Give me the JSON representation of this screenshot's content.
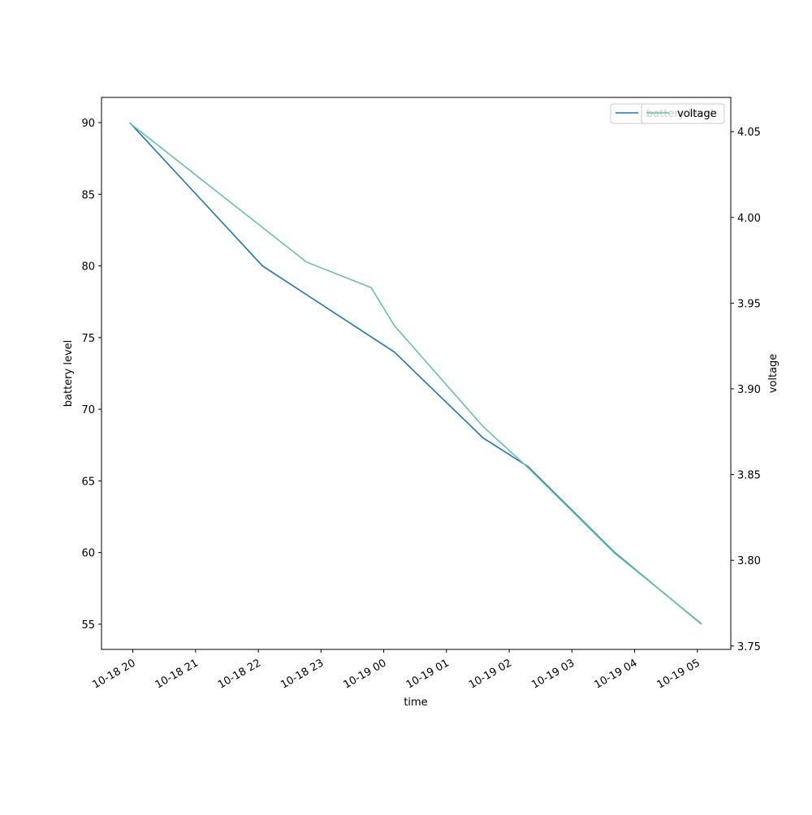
{
  "chart_data": {
    "type": "line",
    "x_label": "time",
    "y_label": "battery level",
    "y2_label": "voltage",
    "xlim": [
      "10-18 19:30",
      "10-19 05:32"
    ],
    "xticks": [
      {
        "value": "10-18 20:00",
        "label": "10-18 20"
      },
      {
        "value": "10-18 21:00",
        "label": "10-18 21"
      },
      {
        "value": "10-18 22:00",
        "label": "10-18 22"
      },
      {
        "value": "10-18 23:00",
        "label": "10-18 23"
      },
      {
        "value": "10-19 00:00",
        "label": "10-19 00"
      },
      {
        "value": "10-19 01:00",
        "label": "10-19 01"
      },
      {
        "value": "10-19 02:00",
        "label": "10-19 02"
      },
      {
        "value": "10-19 03:00",
        "label": "10-19 03"
      },
      {
        "value": "10-19 04:00",
        "label": "10-19 04"
      },
      {
        "value": "10-19 05:00",
        "label": "10-19 05"
      }
    ],
    "ylim": [
      53.24,
      91.76
    ],
    "yticks": [
      55,
      60,
      65,
      70,
      75,
      80,
      85,
      90
    ],
    "y2lim": [
      3.748,
      4.07
    ],
    "y2ticks": [
      3.75,
      {
        "value": 3.8,
        "label": "3.80"
      },
      3.85,
      {
        "value": 3.9,
        "label": "3.90"
      },
      3.95,
      {
        "value": 4.0,
        "label": "4.00"
      },
      4.05
    ],
    "legend": "upper right",
    "series": [
      {
        "name": "battery level",
        "color": "#1f77b4",
        "x": [
          "10-18 19:57",
          "10-18 22:04",
          "10-19 00:10",
          "10-19 01:35",
          "10-19 02:18",
          "10-19 03:41",
          "10-19 05:04"
        ],
        "values": [
          90,
          80,
          74,
          68,
          66,
          60,
          55
        ]
      },
      {
        "name": "voltage",
        "color": "#66c2a5",
        "axis": "y2",
        "x": [
          "10-18 19:57",
          "10-18 22:46",
          "10-18 23:48",
          "10-19 00:10",
          "10-19 01:35",
          "10-19 02:18",
          "10-19 03:41",
          "10-19 05:04"
        ],
        "values": [
          4.055,
          3.974,
          3.959,
          3.937,
          3.878,
          3.854,
          3.804,
          3.763
        ]
      }
    ]
  }
}
